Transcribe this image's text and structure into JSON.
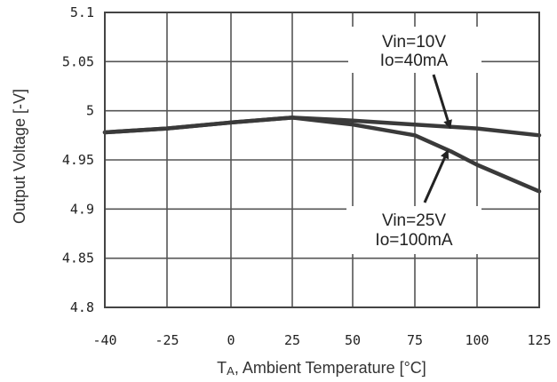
{
  "chart_data": {
    "type": "line",
    "title": "",
    "xlabel_main": "T",
    "xlabel_sub": "A",
    "xlabel_rest": ", Ambient Temperature [°C]",
    "ylabel": "Output Voltage [-V]",
    "xlim": [
      -40,
      125
    ],
    "ylim": [
      4.8,
      5.1
    ],
    "x_ticks": [
      -40,
      -25,
      0,
      25,
      50,
      75,
      100,
      125
    ],
    "x_tick_labels": [
      "-40",
      "-25",
      "0",
      "25",
      "50",
      "75",
      "100",
      "125"
    ],
    "y_ticks": [
      4.8,
      4.85,
      4.9,
      4.95,
      5.0,
      5.05,
      5.1
    ],
    "y_tick_labels": [
      "4.8",
      "4.85",
      "4.9",
      "4.95",
      "5",
      "5.05",
      "5.1"
    ],
    "grid": true,
    "series": [
      {
        "x": [
          -40,
          -25,
          0,
          25,
          50,
          75,
          100,
          125
        ],
        "y": [
          4.978,
          4.982,
          4.988,
          4.993,
          4.99,
          4.986,
          4.982,
          4.975
        ]
      },
      {
        "x": [
          -40,
          -25,
          0,
          25,
          50,
          75,
          90,
          100,
          125
        ],
        "y": [
          4.978,
          4.982,
          4.988,
          4.993,
          4.986,
          4.975,
          4.958,
          4.945,
          4.918
        ]
      }
    ],
    "annotations": [
      {
        "line1": "Vin=10V",
        "line2": "Io=40mA",
        "arrow_to_x": 89,
        "arrow_to_y": 4.984
      },
      {
        "line1": "Vin=25V",
        "line2": "Io=100mA",
        "arrow_to_x": 88,
        "arrow_to_y": 4.958
      }
    ]
  }
}
